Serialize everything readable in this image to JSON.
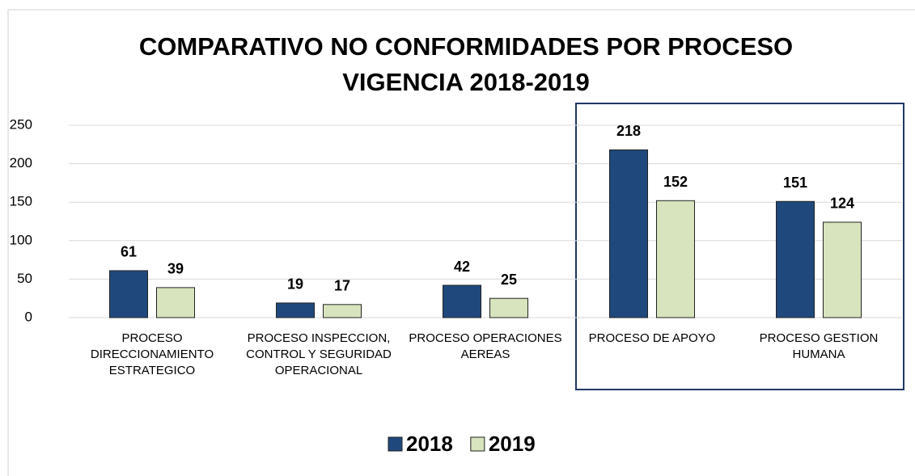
{
  "chart_data": {
    "type": "bar",
    "title": "COMPARATIVO NO CONFORMIDADES POR PROCESO VIGENCIA 2018-2019",
    "categories": [
      "PROCESO DIRECCIONAMIENTO ESTRATEGICO",
      "PROCESO INSPECCION, CONTROL Y SEGURIDAD OPERACIONAL",
      "PROCESO OPERACIONES AEREAS",
      "PROCESO DE APOYO",
      "PROCESO GESTION HUMANA"
    ],
    "series": [
      {
        "name": "2018",
        "color": "#1f497d",
        "values": [
          61,
          19,
          42,
          218,
          151
        ]
      },
      {
        "name": "2019",
        "color": "#d7e4bd",
        "values": [
          39,
          17,
          25,
          152,
          124
        ]
      }
    ],
    "ylim": [
      0,
      250
    ],
    "yticks": [
      0,
      50,
      100,
      150,
      200,
      250
    ],
    "grid": true
  }
}
